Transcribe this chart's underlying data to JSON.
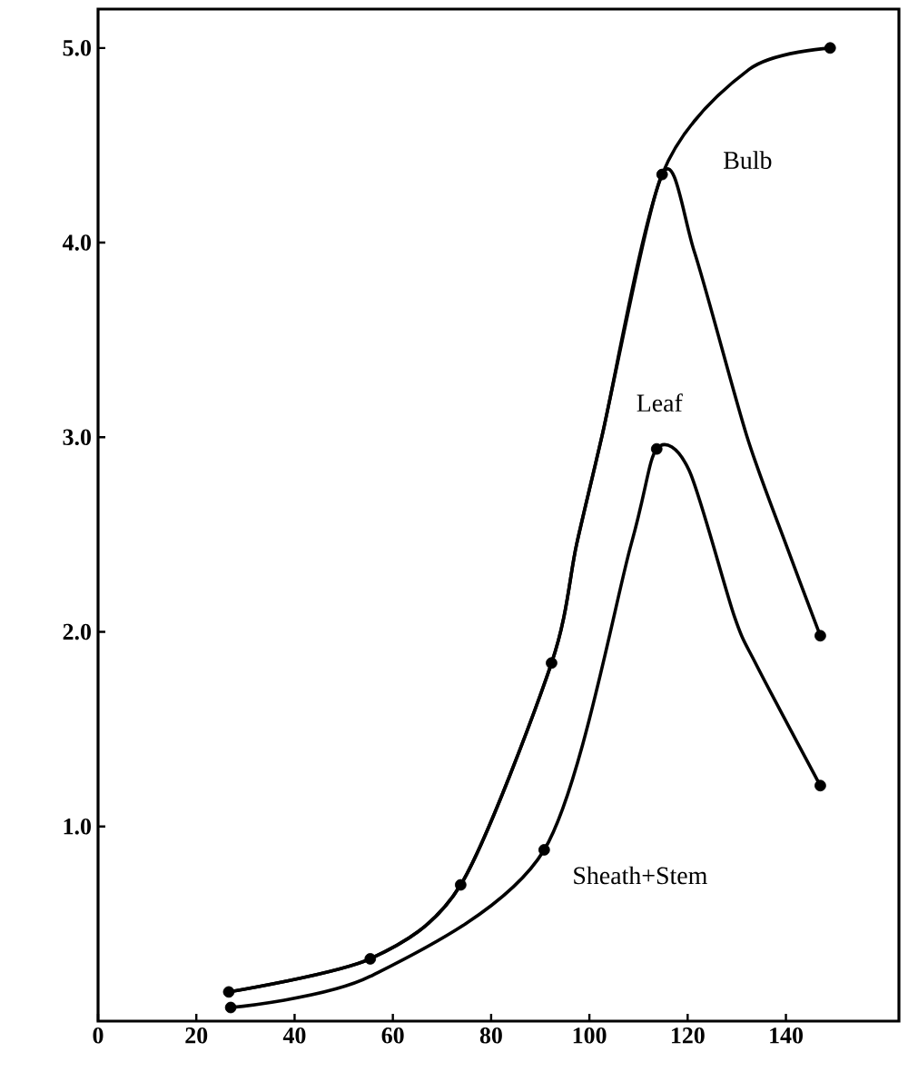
{
  "chart_data": {
    "type": "line",
    "xlim": [
      0,
      163
    ],
    "ylim": [
      0,
      5.2
    ],
    "xticks": [
      0,
      20,
      40,
      60,
      80,
      100,
      120,
      140
    ],
    "yticks": [
      {
        "value": 1,
        "label": "1.0"
      },
      {
        "value": 2,
        "label": "2.0"
      },
      {
        "value": 3,
        "label": "3.0"
      },
      {
        "value": 4,
        "label": "4.0"
      },
      {
        "value": 5,
        "label": "5.0"
      }
    ],
    "grid": false,
    "marker": "none",
    "line_style": "solid",
    "series": [
      {
        "name": "Bulb",
        "color": "#000000",
        "x": [
          26.6,
          55.4,
          73.8,
          92.3,
          97.4,
          102.6,
          114.8,
          132.5,
          149
        ],
        "values": [
          0.15,
          0.32,
          0.7,
          1.84,
          2.45,
          3.01,
          4.35,
          4.89,
          5.0
        ]
      },
      {
        "name": "Leaf",
        "color": "#000000",
        "x": [
          26.6,
          55.4,
          73.8,
          92.3,
          97.4,
          102.6,
          114.8,
          121.4,
          132,
          140,
          147
        ],
        "values": [
          0.15,
          0.32,
          0.7,
          1.84,
          2.45,
          3.01,
          4.35,
          3.95,
          3.01,
          2.45,
          1.98
        ]
      },
      {
        "name": "Sheath+Stem",
        "color": "#000000",
        "x": [
          27,
          55.4,
          90.8,
          108.5,
          113.7,
          120.3,
          129.5,
          134,
          147
        ],
        "values": [
          0.07,
          0.23,
          0.88,
          2.45,
          2.94,
          2.83,
          2.08,
          1.83,
          1.21
        ]
      },
      {
        "type": "scatter",
        "marker": "circle",
        "color": "#000000",
        "x": [
          26.6,
          27,
          55.4,
          73.8,
          90.8,
          92.3,
          113.7,
          114.8,
          147,
          147,
          149
        ],
        "values": [
          0.15,
          0.07,
          0.32,
          0.7,
          0.88,
          1.84,
          2.94,
          4.35,
          1.98,
          1.21,
          5.0
        ]
      }
    ]
  }
}
